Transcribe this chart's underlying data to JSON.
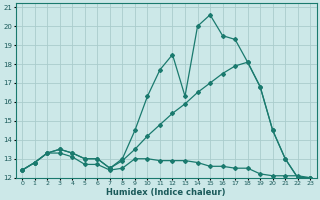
{
  "xlabel": "Humidex (Indice chaleur)",
  "bg_color": "#cce8e8",
  "grid_color": "#aacccc",
  "line_color": "#1a7a6e",
  "xlim": [
    -0.5,
    23.5
  ],
  "ylim": [
    12,
    21.2
  ],
  "xticks": [
    0,
    1,
    2,
    3,
    4,
    5,
    6,
    7,
    8,
    9,
    10,
    11,
    12,
    13,
    14,
    15,
    16,
    17,
    18,
    19,
    20,
    21,
    22,
    23
  ],
  "yticks": [
    12,
    13,
    14,
    15,
    16,
    17,
    18,
    19,
    20,
    21
  ],
  "line1_flat": {
    "x": [
      0,
      1,
      2,
      3,
      4,
      5,
      6,
      7,
      8,
      9,
      10,
      11,
      12,
      13,
      14,
      15,
      16,
      17,
      18,
      19,
      20,
      21,
      22,
      23
    ],
    "y": [
      12.4,
      12.8,
      13.3,
      13.3,
      13.1,
      12.7,
      12.7,
      12.4,
      12.5,
      13.0,
      13.0,
      12.9,
      12.9,
      12.9,
      12.8,
      12.6,
      12.6,
      12.5,
      12.5,
      12.2,
      12.1,
      12.1,
      12.1,
      12.0
    ]
  },
  "line2_mid": {
    "x": [
      0,
      1,
      2,
      3,
      4,
      5,
      6,
      7,
      8,
      9,
      10,
      11,
      12,
      13,
      14,
      15,
      16,
      17,
      18,
      19,
      20,
      21,
      22,
      23
    ],
    "y": [
      12.4,
      12.8,
      13.3,
      13.5,
      13.3,
      13.0,
      13.0,
      12.5,
      12.9,
      13.5,
      14.2,
      14.8,
      15.4,
      15.9,
      16.5,
      17.0,
      17.5,
      17.9,
      18.1,
      16.8,
      14.5,
      13.0,
      12.0,
      12.0
    ]
  },
  "line3_peak": {
    "x": [
      0,
      1,
      2,
      3,
      4,
      5,
      6,
      7,
      8,
      9,
      10,
      11,
      12,
      13,
      14,
      15,
      16,
      17,
      18,
      19,
      20,
      21,
      22,
      23
    ],
    "y": [
      12.4,
      12.8,
      13.3,
      13.5,
      13.3,
      13.0,
      13.0,
      12.5,
      13.0,
      14.5,
      16.3,
      17.7,
      18.5,
      16.3,
      20.0,
      20.6,
      19.5,
      19.3,
      18.1,
      16.8,
      14.5,
      13.0,
      12.0,
      12.0
    ]
  }
}
